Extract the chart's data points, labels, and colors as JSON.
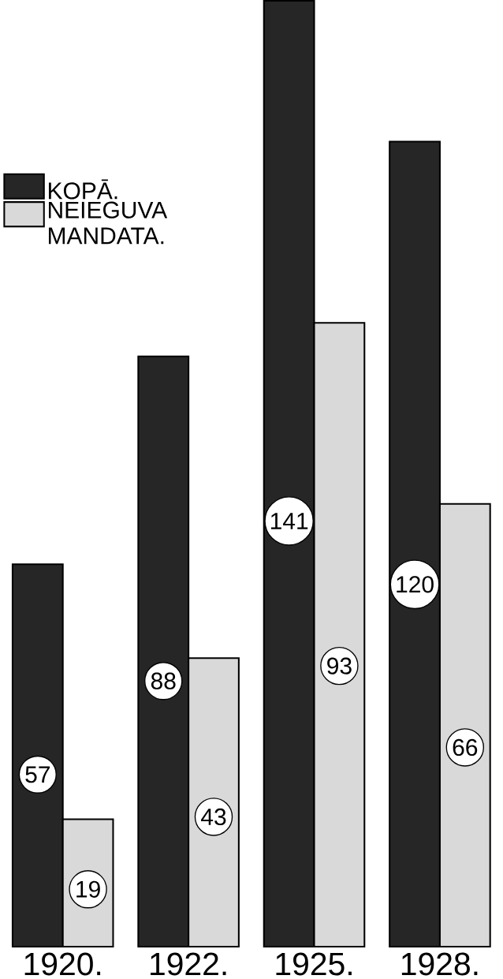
{
  "chart_data": {
    "type": "bar",
    "categories": [
      "1920.",
      "1922.",
      "1925.",
      "1928."
    ],
    "series": [
      {
        "name": "KOPĀ.",
        "color": "#262626",
        "values": [
          57,
          88,
          141,
          120
        ]
      },
      {
        "name": "NEIEGUVA MANDATA.",
        "color": "#d9d9d9",
        "values": [
          19,
          43,
          93,
          66
        ]
      }
    ],
    "data_labels": true,
    "legend": "top left"
  }
}
